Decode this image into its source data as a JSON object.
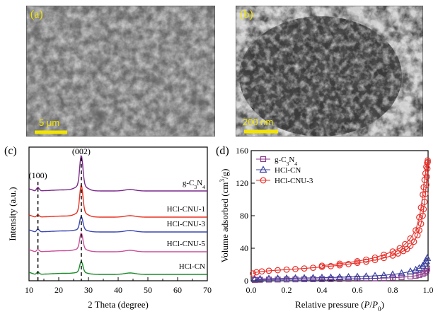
{
  "panels": {
    "a": {
      "label": "(a)",
      "scale_bar": "5 μm"
    },
    "b": {
      "label": "(b)",
      "scale_bar": "200 nm"
    },
    "c": {
      "label": "(c)"
    },
    "d": {
      "label": "(d)"
    }
  },
  "chart_data": [
    {
      "type": "line",
      "panel": "c",
      "xlabel": "2 Theta (degree)",
      "ylabel": "Intensity (a.u.)",
      "xlim": [
        10,
        70
      ],
      "xticks": [
        10,
        20,
        30,
        40,
        50,
        60,
        70
      ],
      "annotations": [
        "(100)",
        "(002)"
      ],
      "peak_positions": [
        13.0,
        27.6
      ],
      "series": [
        {
          "name": "g-C3N4",
          "label_main": "g-C",
          "label_sub1": "3",
          "label_mid": "N",
          "label_sub2": "4",
          "color": "#7a2a8a"
        },
        {
          "name": "HCl-CNU-1",
          "color": "#e83020"
        },
        {
          "name": "HCl-CNU-3",
          "color": "#3a46b0"
        },
        {
          "name": "HCl-CNU-5",
          "color": "#c8509a"
        },
        {
          "name": "HCl-CN",
          "color": "#1a8a2a"
        }
      ]
    },
    {
      "type": "scatter",
      "panel": "d",
      "xlabel_main": "Relative pressure (",
      "xlabel_p": "P",
      "xlabel_slash": "/",
      "xlabel_p0": "P",
      "xlabel_sub0": "0",
      "xlabel_end": ")",
      "ylabel_main": "Volume adsorbed (cm",
      "ylabel_sup": "3",
      "ylabel_end": "/g)",
      "xlim": [
        0.0,
        1.0
      ],
      "ylim": [
        0,
        160
      ],
      "xticks": [
        "0.0",
        "0.2",
        "0.4",
        "0.6",
        "0.8",
        "1.0"
      ],
      "yticks": [
        "0",
        "40",
        "80",
        "120",
        "160"
      ],
      "legend_position": "top-left",
      "series": [
        {
          "name": "g-C3N4",
          "label_main": "g-C",
          "label_sub1": "3",
          "label_mid": "N",
          "label_sub2": "4",
          "marker": "square",
          "color": "#8a3a8a",
          "x": [
            0.02,
            0.05,
            0.1,
            0.15,
            0.2,
            0.25,
            0.3,
            0.35,
            0.4,
            0.45,
            0.5,
            0.55,
            0.6,
            0.65,
            0.7,
            0.75,
            0.8,
            0.85,
            0.9,
            0.93,
            0.95,
            0.97,
            0.98,
            0.99,
            0.995
          ],
          "y": [
            1,
            1.2,
            1.4,
            1.5,
            1.6,
            1.7,
            1.8,
            1.9,
            2,
            2.1,
            2.2,
            2.4,
            2.6,
            2.8,
            3,
            3.3,
            3.7,
            4.3,
            5.2,
            6.2,
            7.2,
            8.5,
            10,
            12,
            15
          ]
        },
        {
          "name": "HCl-CN",
          "marker": "triangle",
          "color": "#3a40a0",
          "x": [
            0.02,
            0.05,
            0.1,
            0.15,
            0.2,
            0.25,
            0.3,
            0.35,
            0.4,
            0.45,
            0.5,
            0.55,
            0.6,
            0.65,
            0.7,
            0.75,
            0.8,
            0.85,
            0.9,
            0.93,
            0.95,
            0.97,
            0.98,
            0.99,
            0.995
          ],
          "y": [
            2,
            2.3,
            2.6,
            2.8,
            3,
            3.2,
            3.4,
            3.6,
            3.8,
            4,
            4.3,
            4.6,
            5,
            5.4,
            6,
            6.8,
            7.8,
            9.2,
            11.5,
            13.5,
            15.5,
            18.5,
            21,
            24,
            28
          ]
        },
        {
          "name": "HCl-CNU-3",
          "marker": "circle",
          "color": "#e8302a",
          "x": [
            0.01,
            0.03,
            0.06,
            0.1,
            0.15,
            0.2,
            0.25,
            0.3,
            0.35,
            0.4,
            0.45,
            0.5,
            0.55,
            0.6,
            0.65,
            0.7,
            0.75,
            0.8,
            0.83,
            0.86,
            0.88,
            0.9,
            0.92,
            0.94,
            0.95,
            0.96,
            0.97,
            0.975,
            0.98,
            0.985,
            0.99,
            0.993,
            0.996,
            0.998
          ],
          "y": [
            9,
            10.5,
            11.5,
            12.3,
            13,
            13.7,
            14.4,
            15.1,
            16,
            17,
            18,
            19,
            20.5,
            22,
            23.5,
            25.5,
            28,
            31,
            33.5,
            36.5,
            39,
            43,
            48,
            56,
            62,
            70,
            80,
            88,
            97,
            107,
            118,
            128,
            138,
            146
          ]
        },
        {
          "name": "HCl-CNU-3-desorption",
          "marker": "circle",
          "color": "#e8302a",
          "x": [
            0.998,
            0.995,
            0.99,
            0.985,
            0.98,
            0.975,
            0.97,
            0.96,
            0.95,
            0.93,
            0.9,
            0.87,
            0.84,
            0.8,
            0.75,
            0.7,
            0.65,
            0.6,
            0.5,
            0.4
          ],
          "y": [
            148,
            145,
            140,
            132,
            124,
            115,
            106,
            90,
            78,
            62,
            52,
            45,
            40,
            36,
            32,
            28.5,
            26,
            24,
            21,
            18.5
          ]
        }
      ]
    }
  ]
}
